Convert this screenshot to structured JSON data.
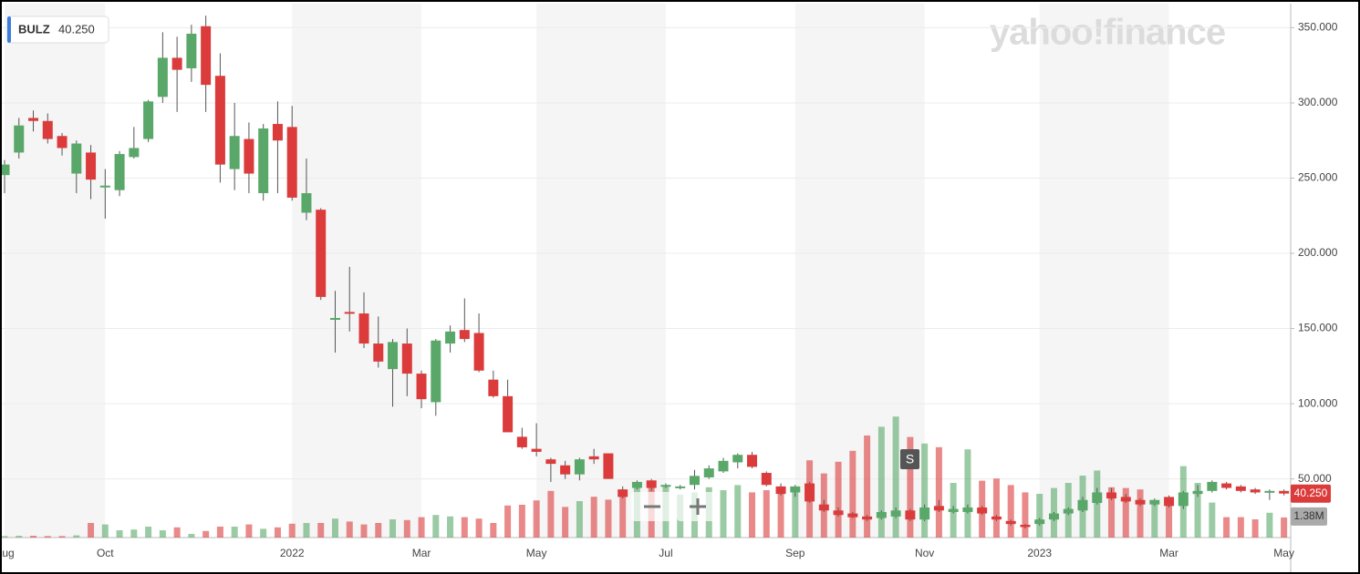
{
  "chart_data": {
    "type": "candlestick",
    "ticker": "BULZ",
    "last_price": {
      "value": 40.25,
      "label": "40.250"
    },
    "watermark": "yahoo!finance",
    "annotation": "S",
    "volume_label": {
      "value": 1.38,
      "label": "1.38M"
    },
    "categories": [
      "Aug",
      null,
      null,
      null,
      null,
      null,
      null,
      "Oct",
      null,
      null,
      null,
      null,
      null,
      null,
      null,
      null,
      null,
      null,
      null,
      null,
      "2022",
      null,
      null,
      null,
      null,
      null,
      null,
      null,
      null,
      "Mar",
      null,
      null,
      null,
      null,
      null,
      null,
      null,
      "May",
      null,
      null,
      null,
      null,
      null,
      null,
      null,
      null,
      "Jul",
      null,
      null,
      null,
      null,
      null,
      null,
      null,
      null,
      "Sep",
      null,
      null,
      null,
      null,
      null,
      null,
      null,
      null,
      "Nov",
      null,
      null,
      null,
      null,
      null,
      null,
      null,
      "2023",
      null,
      null,
      null,
      null,
      null,
      null,
      null,
      null,
      "Mar",
      null,
      null,
      null,
      null,
      null,
      null,
      null,
      "May"
    ],
    "open": [
      252,
      267,
      290,
      288,
      278,
      253,
      267,
      244,
      242,
      264,
      276,
      304,
      330,
      323,
      351,
      318,
      256,
      276,
      240,
      286,
      284,
      227,
      229,
      156,
      161,
      160,
      140,
      123,
      140,
      120,
      101,
      140,
      149,
      147,
      116,
      105,
      78,
      70,
      63,
      59,
      53,
      65,
      67,
      43,
      44,
      49,
      45,
      44,
      46,
      51,
      55,
      61,
      66,
      54,
      45,
      41,
      47,
      33,
      29,
      27,
      25,
      24,
      25,
      29,
      23,
      32,
      28,
      28,
      31,
      25,
      22,
      19.5,
      20,
      23,
      27,
      29,
      34,
      41,
      38,
      36,
      33,
      38,
      32,
      40,
      42,
      47,
      45,
      43,
      41,
      42
    ],
    "high": [
      262,
      290,
      295,
      293,
      280,
      275,
      272,
      256,
      268,
      284,
      302,
      347,
      344,
      352,
      358,
      333,
      300,
      287,
      286,
      301,
      298,
      263,
      230,
      175,
      191,
      174,
      158,
      143,
      150,
      122,
      143,
      152,
      170,
      160,
      122,
      116,
      84,
      87,
      64,
      62,
      64,
      70,
      67,
      45,
      49,
      50,
      47,
      46,
      56,
      59,
      64,
      67,
      68,
      55,
      47,
      46,
      48,
      36,
      31,
      28,
      26,
      29,
      31,
      30,
      33,
      36,
      32,
      33,
      32,
      26,
      23,
      20,
      24,
      28,
      31,
      38,
      44,
      44,
      40,
      37,
      37,
      39,
      42,
      46,
      49,
      48,
      46,
      44,
      43,
      43
    ],
    "low": [
      240,
      263,
      281,
      273,
      265,
      240,
      236,
      223,
      238,
      263,
      274,
      300,
      294,
      314,
      294,
      247,
      242,
      240,
      235,
      240,
      235,
      222,
      169,
      134,
      148,
      137,
      124,
      98,
      105,
      97,
      92,
      134,
      141,
      121,
      104,
      81,
      70,
      65,
      48,
      50,
      49,
      60,
      50,
      37,
      43,
      42,
      44,
      43,
      43,
      50,
      54,
      57,
      57,
      45,
      39,
      38,
      34,
      28,
      25,
      24,
      22,
      23,
      24,
      22,
      22,
      28,
      27,
      27,
      26,
      22,
      19,
      17,
      19,
      22,
      26,
      28,
      33,
      36,
      34,
      32,
      32,
      31,
      30,
      38,
      41,
      43,
      41,
      40,
      36,
      39
    ],
    "close": [
      259,
      285,
      288,
      276,
      270,
      273,
      249,
      245,
      266,
      270,
      301,
      330,
      322,
      346,
      312,
      259,
      278,
      253,
      283,
      275,
      237,
      240,
      171,
      157,
      160,
      140,
      128,
      141,
      120,
      103,
      142,
      148,
      143,
      122,
      105,
      81,
      71,
      68,
      60,
      53,
      63,
      63,
      50,
      38,
      48,
      44,
      46,
      45,
      52,
      57,
      62,
      66,
      58,
      46,
      40,
      45,
      35,
      29,
      26,
      24.5,
      23,
      28,
      29,
      23,
      31,
      29,
      30,
      31,
      27,
      23,
      20,
      18,
      23,
      27,
      30,
      36,
      41,
      37,
      35,
      33,
      36,
      32,
      41,
      42,
      48,
      44,
      42,
      41,
      42,
      40.25
    ],
    "volume": [
      0.1,
      0.12,
      0.12,
      0.1,
      0.1,
      0.15,
      1.0,
      0.9,
      0.5,
      0.55,
      0.75,
      0.5,
      0.7,
      0.25,
      0.45,
      0.75,
      0.75,
      0.9,
      0.6,
      0.7,
      0.95,
      1.0,
      1.0,
      1.3,
      1.1,
      0.9,
      1.0,
      1.25,
      1.2,
      1.4,
      1.55,
      1.45,
      1.4,
      1.3,
      1.0,
      2.2,
      2.25,
      2.55,
      3.2,
      2.1,
      2.5,
      2.8,
      2.6,
      3.3,
      3.6,
      3.9,
      3.5,
      2.95,
      3.1,
      3.45,
      3.25,
      3.6,
      3.1,
      3.25,
      3.45,
      3.2,
      5.3,
      4.4,
      5.2,
      5.95,
      7.0,
      7.6,
      8.3,
      6.9,
      6.45,
      6.2,
      3.75,
      6.05,
      3.9,
      4.05,
      3.6,
      3.1,
      3.0,
      3.4,
      3.75,
      4.25,
      4.6,
      3.45,
      3.4,
      3.3,
      2.4,
      2.6,
      4.9,
      3.75,
      2.4,
      1.4,
      1.4,
      1.25,
      1.7,
      1.38
    ],
    "ylim": [
      11,
      366
    ],
    "yticks": [
      {
        "value": 50,
        "label": "50.000"
      },
      {
        "value": 100,
        "label": "100.000"
      },
      {
        "value": 150,
        "label": "150.000"
      },
      {
        "value": 200,
        "label": "200.000"
      },
      {
        "value": 250,
        "label": "250.000"
      },
      {
        "value": 300,
        "label": "300.000"
      },
      {
        "value": 350,
        "label": "350.000"
      }
    ],
    "y2lim": [
      0,
      8.75
    ],
    "up_color": "#59a869",
    "down_color": "#dc3b3b",
    "grid": true
  }
}
